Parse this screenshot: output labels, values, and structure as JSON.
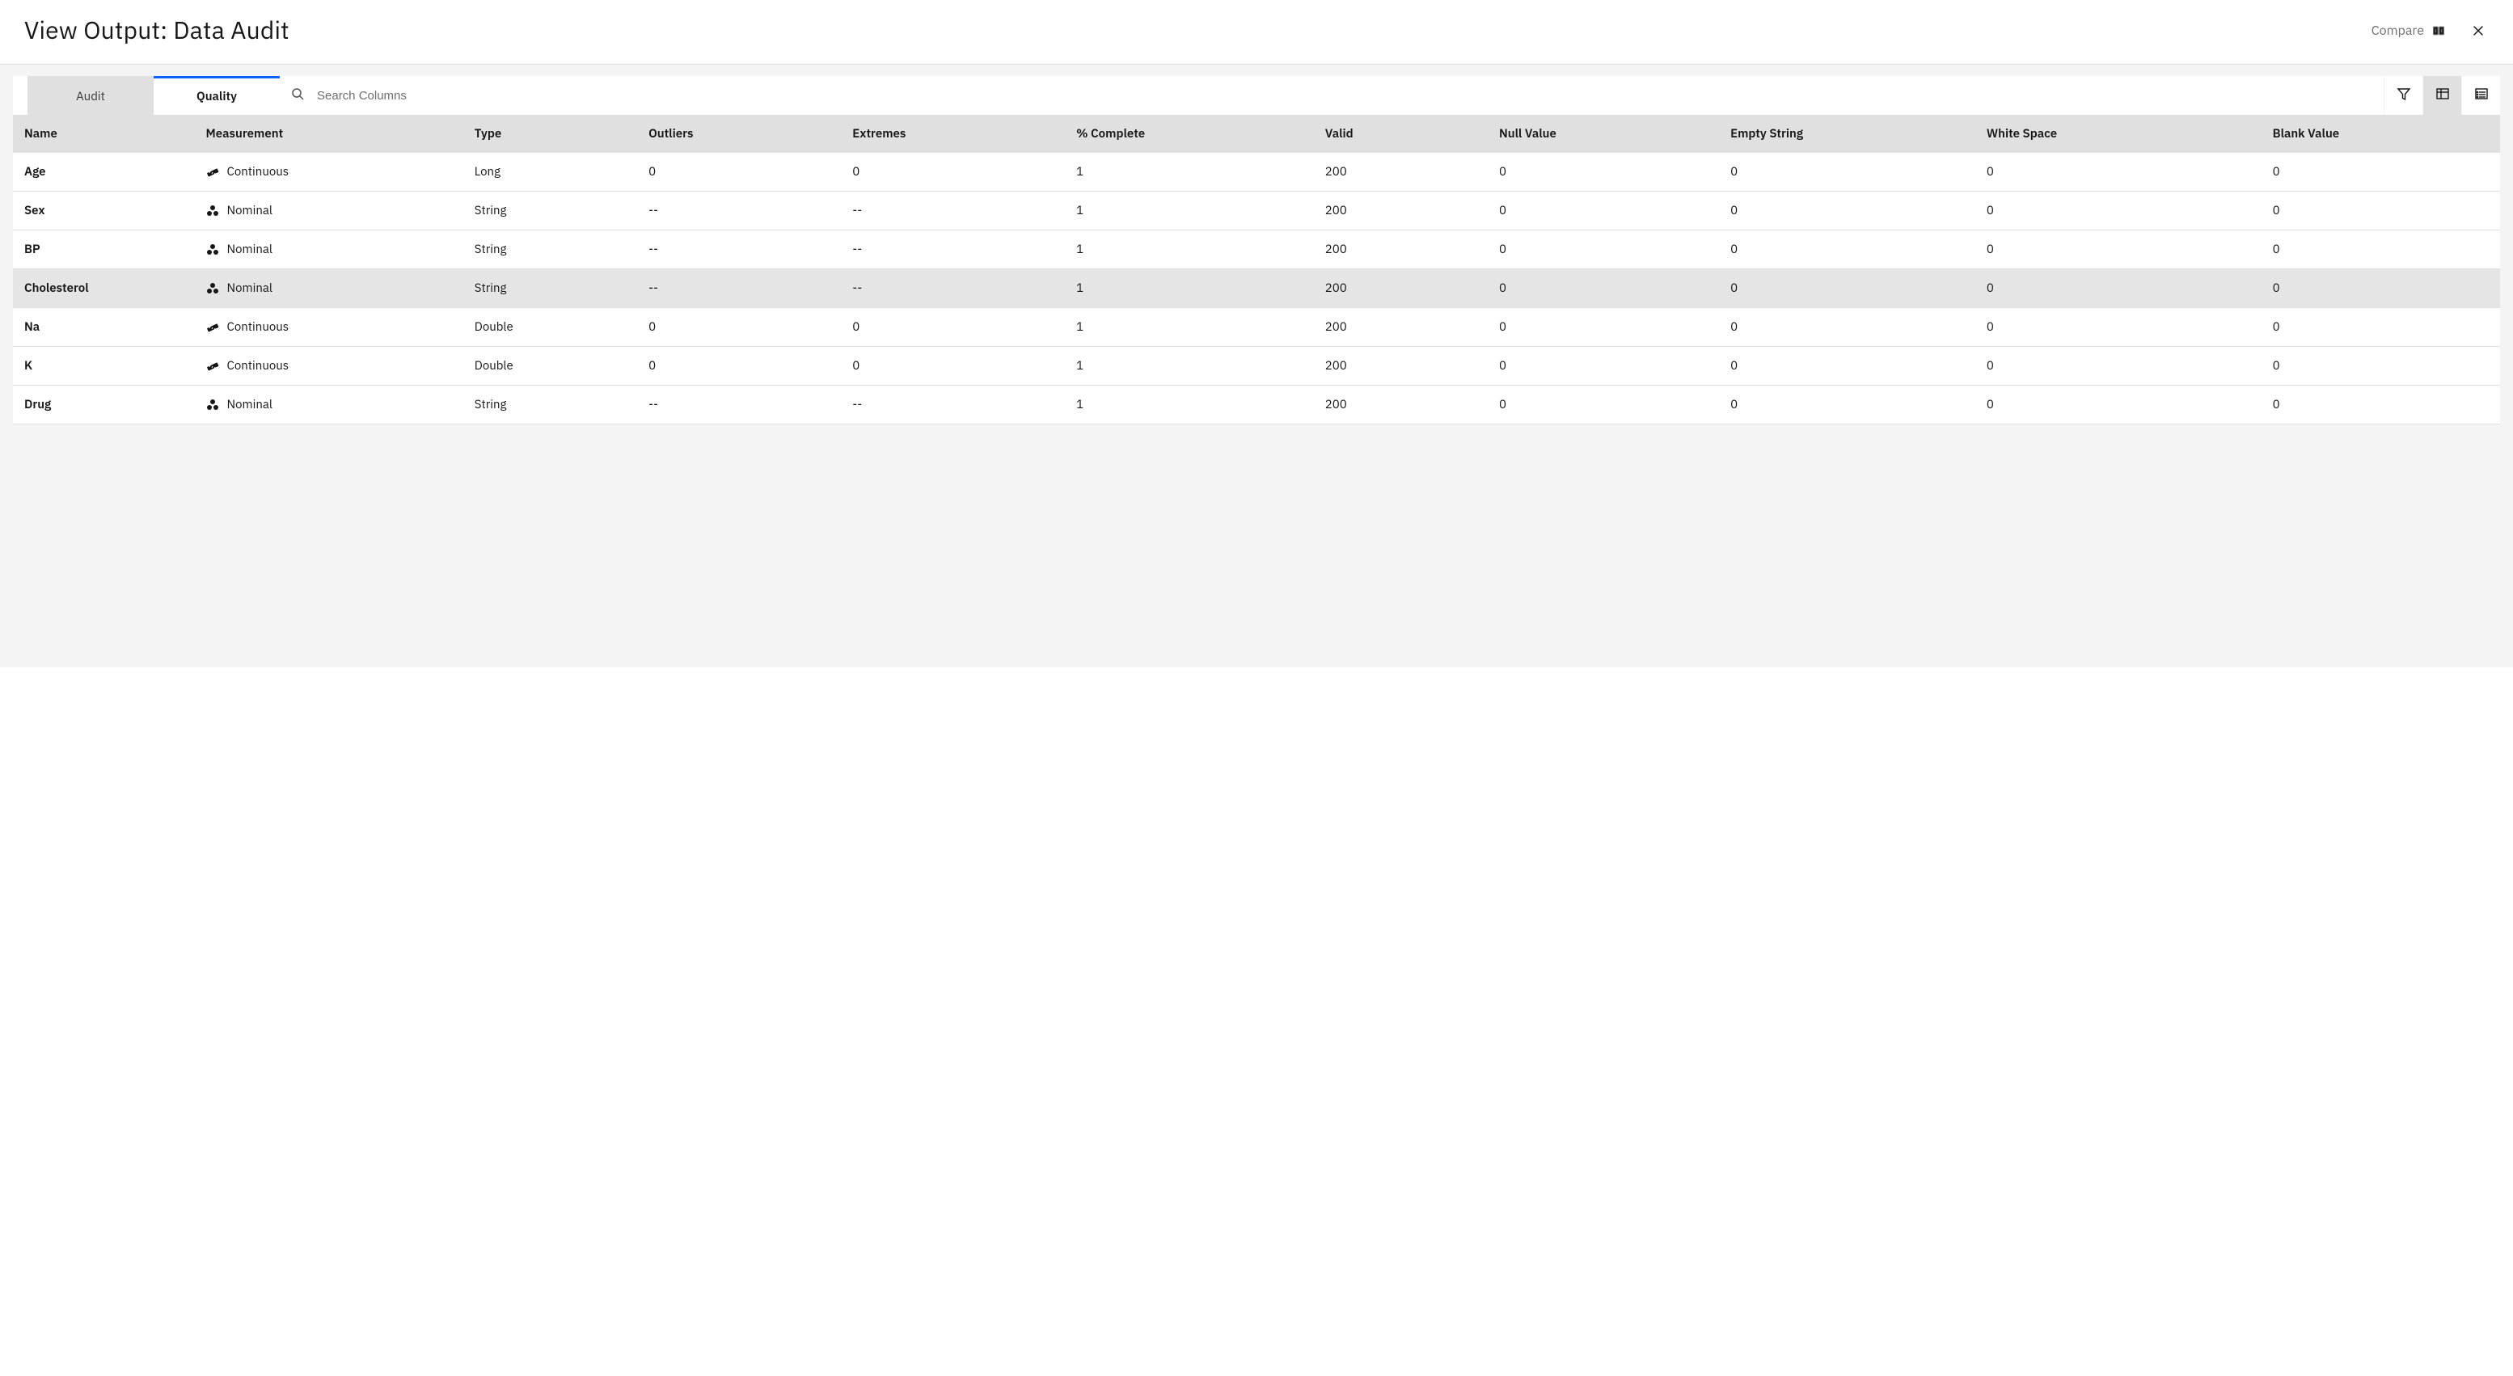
{
  "header": {
    "title": "View Output: Data Audit",
    "compare_label": "Compare"
  },
  "tabs": {
    "audit": "Audit",
    "quality": "Quality",
    "active": "quality"
  },
  "search": {
    "placeholder": "Search Columns"
  },
  "view_buttons": {
    "filter": "filter",
    "table": "table-view",
    "details": "details-view",
    "active": "table-view"
  },
  "columns": [
    "Name",
    "Measurement",
    "Type",
    "Outliers",
    "Extremes",
    "% Complete",
    "Valid",
    "Null Value",
    "Empty String",
    "White Space",
    "Blank Value"
  ],
  "measurement_labels": {
    "continuous": "Continuous",
    "nominal": "Nominal"
  },
  "highlight_row_index": 3,
  "rows": [
    {
      "name": "Age",
      "measurement": "continuous",
      "type": "Long",
      "outliers": "0",
      "extremes": "0",
      "complete": "1",
      "valid": "200",
      "null": "0",
      "empty": "0",
      "ws": "0",
      "blank": "0"
    },
    {
      "name": "Sex",
      "measurement": "nominal",
      "type": "String",
      "outliers": "--",
      "extremes": "--",
      "complete": "1",
      "valid": "200",
      "null": "0",
      "empty": "0",
      "ws": "0",
      "blank": "0"
    },
    {
      "name": "BP",
      "measurement": "nominal",
      "type": "String",
      "outliers": "--",
      "extremes": "--",
      "complete": "1",
      "valid": "200",
      "null": "0",
      "empty": "0",
      "ws": "0",
      "blank": "0"
    },
    {
      "name": "Cholesterol",
      "measurement": "nominal",
      "type": "String",
      "outliers": "--",
      "extremes": "--",
      "complete": "1",
      "valid": "200",
      "null": "0",
      "empty": "0",
      "ws": "0",
      "blank": "0"
    },
    {
      "name": "Na",
      "measurement": "continuous",
      "type": "Double",
      "outliers": "0",
      "extremes": "0",
      "complete": "1",
      "valid": "200",
      "null": "0",
      "empty": "0",
      "ws": "0",
      "blank": "0"
    },
    {
      "name": "K",
      "measurement": "continuous",
      "type": "Double",
      "outliers": "0",
      "extremes": "0",
      "complete": "1",
      "valid": "200",
      "null": "0",
      "empty": "0",
      "ws": "0",
      "blank": "0"
    },
    {
      "name": "Drug",
      "measurement": "nominal",
      "type": "String",
      "outliers": "--",
      "extremes": "--",
      "complete": "1",
      "valid": "200",
      "null": "0",
      "empty": "0",
      "ws": "0",
      "blank": "0"
    }
  ],
  "colors": {
    "accent": "#0f62fe",
    "text": "#161616",
    "panel_bg": "#f4f4f4",
    "header_row": "#e0e0e0",
    "row_border": "#e0e0e0",
    "hover_row": "#e5e5e5",
    "compare_text": "#6f6f6f"
  }
}
